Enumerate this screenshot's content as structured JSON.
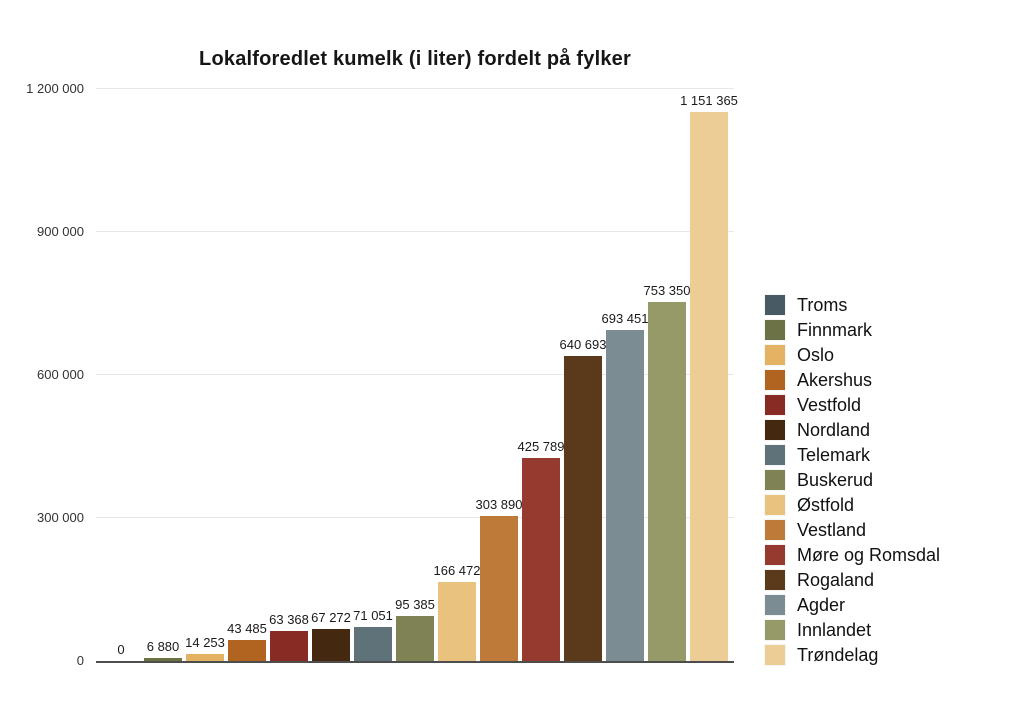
{
  "chart_data": {
    "type": "bar",
    "title": "Lokalforedlet kumelk (i liter) fordelt på fylker",
    "categories": [
      "Troms",
      "Finnmark",
      "Oslo",
      "Akershus",
      "Vestfold",
      "Nordland",
      "Telemark",
      "Buskerud",
      "Østfold",
      "Vestland",
      "Møre og Romsdal",
      "Rogaland",
      "Agder",
      "Innlandet",
      "Trøndelag"
    ],
    "values": [
      0,
      6880,
      14253,
      43485,
      63368,
      67272,
      71051,
      95385,
      166472,
      303890,
      425789,
      640693,
      693451,
      753350,
      1151365
    ],
    "colors": [
      "#485b64",
      "#6c7245",
      "#e3b263",
      "#b0641f",
      "#872b24",
      "#44280f",
      "#5f7179",
      "#7f8354",
      "#e9c27e",
      "#bd7a38",
      "#963a30",
      "#5b3a1c",
      "#7b8c93",
      "#959a68",
      "#edcd96"
    ],
    "xlabel": "",
    "ylabel": "",
    "ylim": [
      0,
      1200000
    ],
    "yticks": [
      0,
      300000,
      600000,
      900000,
      1200000
    ],
    "grid": true,
    "legend_position": "right",
    "value_labels_shown": true,
    "number_format": "space-thousands"
  },
  "style_colors": {
    "background": "#ffffff",
    "gridline": "#e7e7e7",
    "axis_line": "#4d4d4d",
    "title_text": "#161616",
    "value_label_text": "#1a1a1a",
    "tick_text": "#333333",
    "legend_text": "#111111"
  }
}
